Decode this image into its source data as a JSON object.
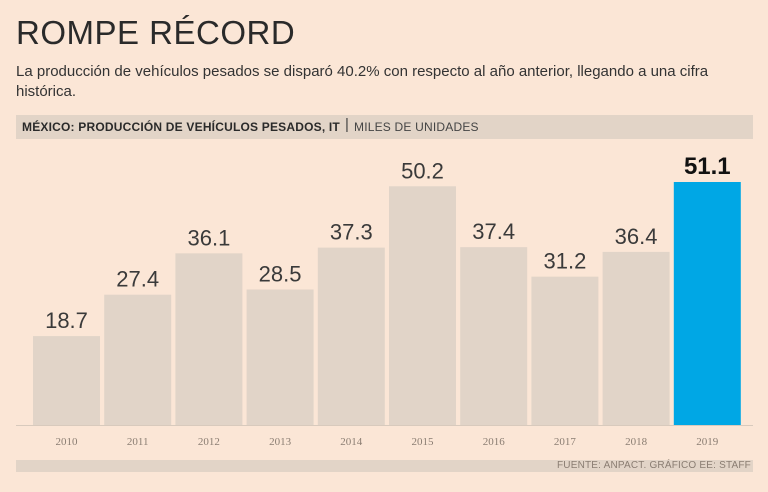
{
  "header": {
    "title": "ROMPE RÉCORD",
    "subtitle": "La producción de vehículos pesados se disparó 40.2% con respecto al año anterior, llegando a una cifra histórica."
  },
  "bar_header": {
    "label": "MÉXICO: PRODUCCIÓN DE VEHÍCULOS PESADOS, IT",
    "separator": "|",
    "units": "MILES DE UNIDADES"
  },
  "footer": {
    "source": "FUENTE: ANPACT. GRÁFICO EE: STAFF"
  },
  "colors": {
    "bar": "#e1d4c8",
    "highlight": "#00a7e5",
    "background": "#fbe6d6"
  },
  "chart_data": {
    "type": "bar",
    "title": "MÉXICO: PRODUCCIÓN DE VEHÍCULOS PESADOS, IT",
    "ylabel": "MILES DE UNIDADES",
    "xlabel": "",
    "categories": [
      "2010",
      "2011",
      "2012",
      "2013",
      "2014",
      "2015",
      "2016",
      "2017",
      "2018",
      "2019"
    ],
    "values": [
      18.7,
      27.4,
      36.1,
      28.5,
      37.3,
      50.2,
      37.4,
      31.2,
      36.4,
      51.1
    ],
    "labels": [
      "18.7",
      "27.4",
      "36.1",
      "28.5",
      "37.3",
      "50.2",
      "37.4",
      "31.2",
      "36.4",
      "51.1"
    ],
    "highlight_index": 9,
    "ylim": [
      0,
      60
    ],
    "grid": false
  }
}
